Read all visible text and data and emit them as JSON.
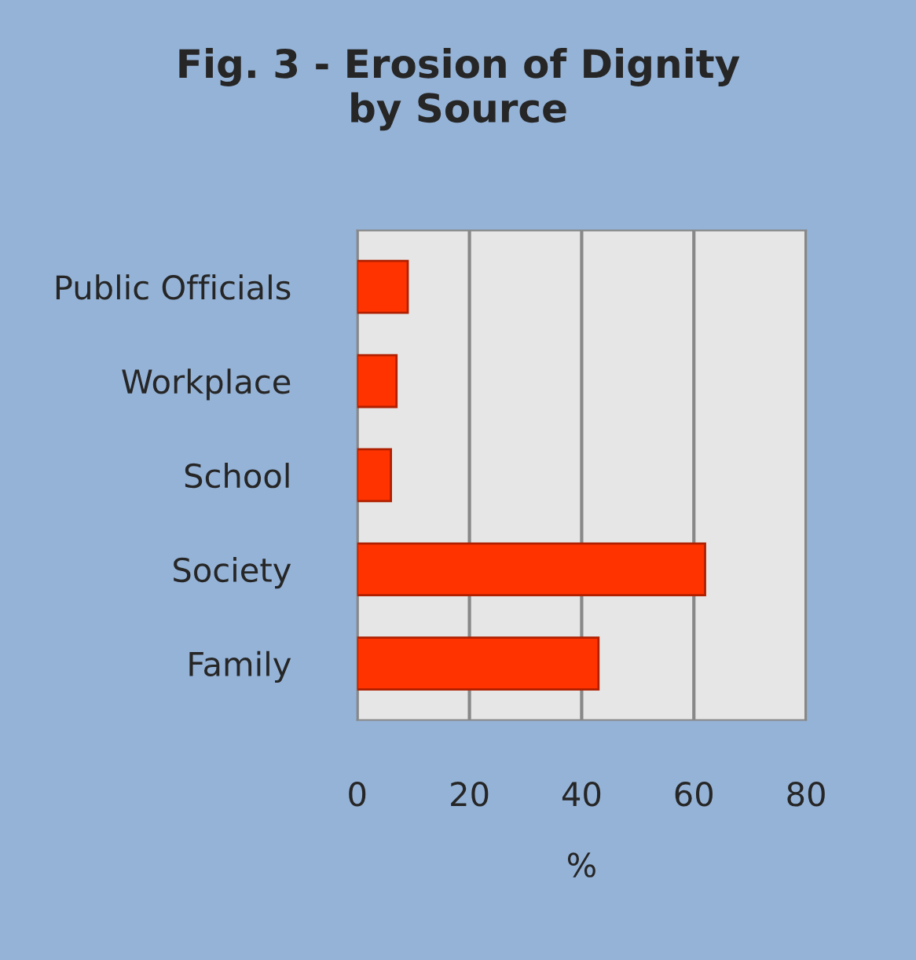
{
  "chart_data": {
    "type": "bar",
    "orientation": "horizontal",
    "title": "Fig. 3 - Erosion of Dignity\nby Source",
    "xlabel": "%",
    "categories": [
      "Public Officials",
      "Workplace",
      "School",
      "Society",
      "Family"
    ],
    "values": [
      9,
      7,
      6,
      62,
      43
    ],
    "color": "#ff3300",
    "xlim": [
      0,
      80
    ],
    "xticks": [
      0,
      20,
      40,
      60,
      80
    ],
    "grid": "x",
    "legend": false
  }
}
